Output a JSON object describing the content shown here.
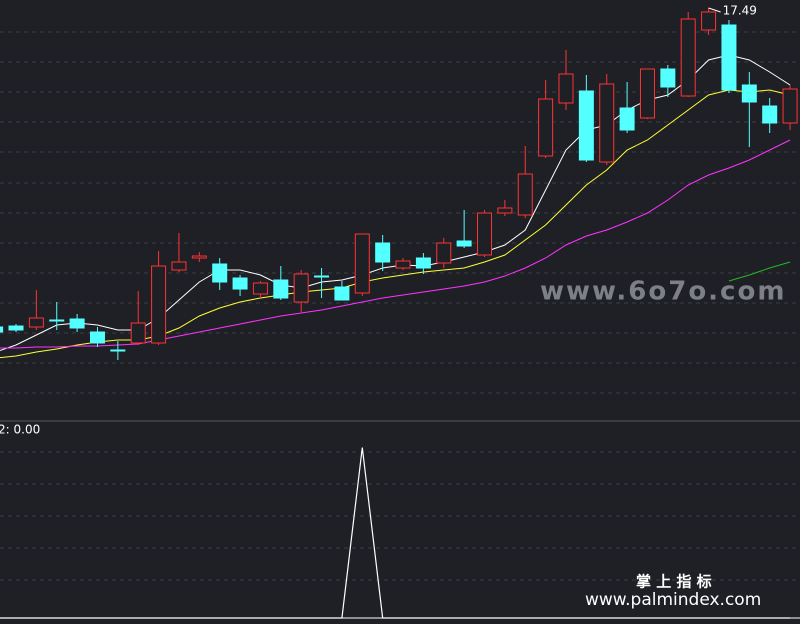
{
  "chart_data": [
    {
      "type": "candlestick",
      "ylim": [
        9.25,
        17.65
      ],
      "up_color": "#ff3232",
      "down_color": "#54ffff",
      "open": [
        11.11,
        11.13,
        11.11,
        11.25,
        11.27,
        11.01,
        10.65,
        10.79,
        10.79,
        12.25,
        12.49,
        12.37,
        12.09,
        11.77,
        12.05,
        11.61,
        12.13,
        11.91,
        11.79,
        12.79,
        12.29,
        12.49,
        12.39,
        12.83,
        12.55,
        13.39,
        13.35,
        14.53,
        15.59,
        15.83,
        14.41,
        15.49,
        15.29,
        16.27,
        15.73,
        17.05,
        17.15,
        15.95,
        15.53,
        15.19
      ],
      "high": [
        11.15,
        11.17,
        11.85,
        11.61,
        11.37,
        11.11,
        10.83,
        11.83,
        12.63,
        12.99,
        12.61,
        12.49,
        12.15,
        12.03,
        12.33,
        12.25,
        12.29,
        12.03,
        12.97,
        12.95,
        12.49,
        12.59,
        12.89,
        13.45,
        13.45,
        13.65,
        14.73,
        16.05,
        16.65,
        16.15,
        16.17,
        16.01,
        16.27,
        16.35,
        17.41,
        17.49,
        17.25,
        16.21,
        15.69,
        15.95
      ],
      "low": [
        10.97,
        11.01,
        11.05,
        11.05,
        11.01,
        10.71,
        10.45,
        10.75,
        10.75,
        12.21,
        12.41,
        11.85,
        11.73,
        11.69,
        11.65,
        11.41,
        11.69,
        11.65,
        11.73,
        12.23,
        12.25,
        12.17,
        12.29,
        12.69,
        12.51,
        13.33,
        13.29,
        14.49,
        15.45,
        14.41,
        14.35,
        14.99,
        15.27,
        15.71,
        15.71,
        16.95,
        15.79,
        14.71,
        14.99,
        15.05
      ],
      "close": [
        11.01,
        11.05,
        11.29,
        11.25,
        11.09,
        10.79,
        10.65,
        11.19,
        12.33,
        12.41,
        12.53,
        12.01,
        11.87,
        11.99,
        11.69,
        12.17,
        12.13,
        11.65,
        12.97,
        12.41,
        12.43,
        12.29,
        12.79,
        12.73,
        13.39,
        13.49,
        14.17,
        15.67,
        16.17,
        14.45,
        15.97,
        15.05,
        16.27,
        15.91,
        17.27,
        17.41,
        15.85,
        15.61,
        15.19,
        15.87
      ],
      "lines": [
        {
          "color": "#ffffff",
          "values": [
            10.61,
            10.75,
            10.95,
            11.15,
            11.19,
            11.15,
            11.05,
            11.05,
            11.29,
            11.65,
            12.01,
            12.25,
            12.25,
            12.15,
            11.95,
            11.89,
            12.01,
            12.05,
            12.15,
            12.29,
            12.35,
            12.33,
            12.41,
            12.51,
            12.61,
            12.75,
            13.05,
            13.85,
            14.65,
            15.05,
            15.15,
            15.45,
            15.65,
            15.75,
            16.05,
            16.45,
            16.55,
            16.45,
            16.21,
            15.95
          ]
        },
        {
          "color": "#ffff33",
          "values": [
            10.49,
            10.53,
            10.61,
            10.67,
            10.75,
            10.81,
            10.85,
            10.85,
            10.93,
            11.09,
            11.33,
            11.49,
            11.61,
            11.69,
            11.75,
            11.81,
            11.85,
            11.89,
            12.01,
            12.09,
            12.15,
            12.21,
            12.25,
            12.29,
            12.41,
            12.55,
            12.85,
            13.15,
            13.55,
            13.95,
            14.25,
            14.65,
            14.85,
            15.15,
            15.45,
            15.75,
            15.85,
            15.81,
            15.85,
            15.75
          ]
        },
        {
          "color": "#ff33ff",
          "values": [
            10.69,
            10.69,
            10.71,
            10.71,
            10.73,
            10.73,
            10.75,
            10.77,
            10.85,
            10.93,
            11.01,
            11.09,
            11.17,
            11.25,
            11.33,
            11.39,
            11.45,
            11.53,
            11.61,
            11.69,
            11.75,
            11.81,
            11.87,
            11.93,
            12.01,
            12.13,
            12.29,
            12.49,
            12.75,
            12.93,
            13.05,
            13.21,
            13.39,
            13.65,
            13.95,
            14.15,
            14.29,
            14.45,
            14.65,
            14.85
          ]
        },
        {
          "color": "#22bb22",
          "values": [
            null,
            null,
            null,
            null,
            null,
            null,
            null,
            null,
            null,
            null,
            null,
            null,
            null,
            null,
            null,
            null,
            null,
            null,
            null,
            null,
            null,
            null,
            null,
            null,
            null,
            null,
            null,
            null,
            null,
            null,
            null,
            null,
            null,
            null,
            null,
            null,
            12.03,
            12.15,
            12.29,
            12.41
          ]
        }
      ]
    },
    {
      "type": "line",
      "label": "2: 0.00",
      "ylim": [
        0,
        1.15
      ],
      "color": "#ffffff",
      "values": [
        0,
        0,
        0,
        0,
        0,
        0,
        0,
        0,
        0,
        0,
        0,
        0,
        0,
        0,
        0,
        0,
        0,
        0,
        1,
        0,
        0,
        0,
        0,
        0,
        0,
        0,
        0,
        0,
        0,
        0,
        0,
        0,
        0,
        0,
        0,
        0,
        0,
        0,
        0,
        0
      ]
    }
  ],
  "watermarks": [
    "www.6o7o.com",
    "掌 上 指 标",
    "www.palmindex.com"
  ]
}
